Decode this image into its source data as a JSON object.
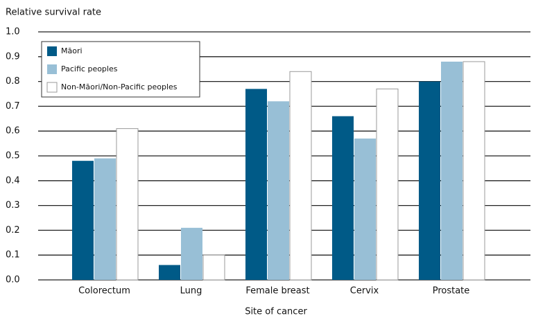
{
  "chart_data": {
    "type": "bar",
    "title": "Relative survival rate",
    "x_label": "Site of cancer",
    "categories": [
      "Colorectum",
      "Lung",
      "Female breast",
      "Cervix",
      "Prostate"
    ],
    "series": [
      {
        "name": "Māori",
        "color": "#005a87",
        "values": [
          0.48,
          0.06,
          0.77,
          0.66,
          0.8
        ]
      },
      {
        "name": "Pacific peoples",
        "color": "#98bfd6",
        "values": [
          0.49,
          0.21,
          0.72,
          0.57,
          0.88
        ]
      },
      {
        "name": "Non-Māori/Non-Pacific peoples",
        "color": "#ffffff",
        "values": [
          0.61,
          0.1,
          0.84,
          0.77,
          0.88
        ]
      }
    ],
    "ylim": [
      0,
      1
    ],
    "yticks": [
      {
        "value": 0,
        "label": "0.0"
      },
      0.1,
      0.2,
      0.3,
      0.4,
      0.5,
      0.6,
      0.7,
      0.8,
      0.9,
      {
        "value": 1,
        "label": "1.0"
      }
    ],
    "grid": true,
    "legend": "upper-left"
  }
}
